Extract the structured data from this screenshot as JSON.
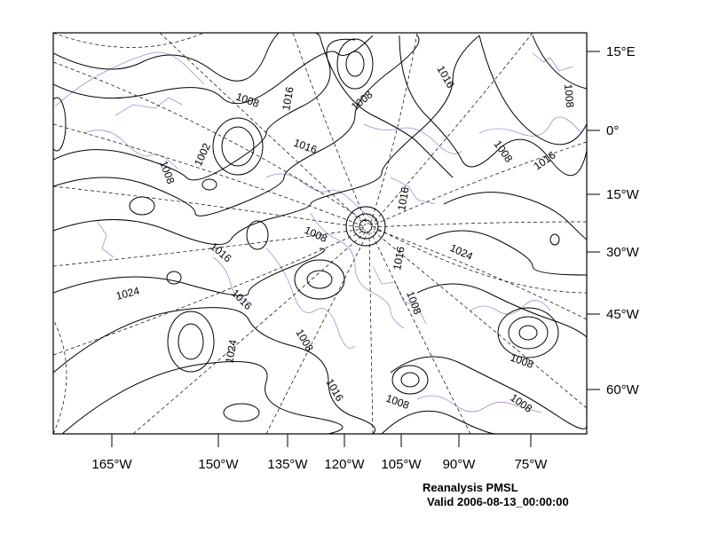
{
  "map": {
    "right_axis_labels": [
      "15°E",
      "0°",
      "15°W",
      "30°W",
      "45°W",
      "60°W"
    ],
    "bottom_axis_labels": [
      "165°W",
      "150°W",
      "135°W",
      "120°W",
      "105°W",
      "90°W",
      "75°W"
    ],
    "contour_labels": [
      "1008",
      "1016",
      "1008",
      "1016",
      "1016",
      "1008",
      "1002",
      "1008",
      "1016",
      "1016",
      "1008",
      "1008",
      "1024",
      "1016",
      "1016",
      "1008",
      "1024",
      "1024",
      "1008",
      "1016",
      "1008",
      "1008",
      "1016",
      "1008"
    ],
    "contour_interval_hpa": 4,
    "colors": {
      "contours": "#000000",
      "coastlines": "#a58bd1",
      "grid": "#000000"
    }
  },
  "title": {
    "line1": "Reanalysis PMSL",
    "line2": "Valid 2006-08-13_00:00:00"
  }
}
